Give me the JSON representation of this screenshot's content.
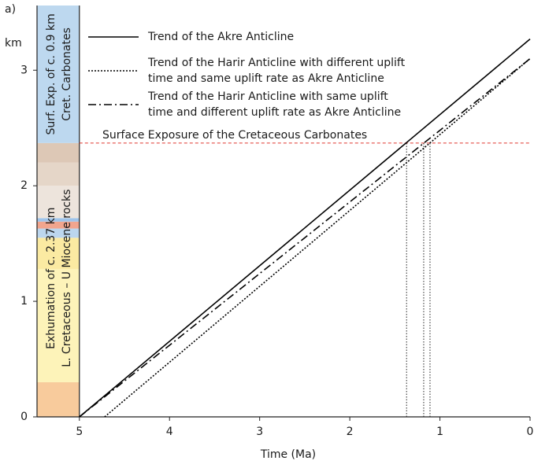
{
  "chart_data": {
    "type": "line",
    "panel_label": "a)",
    "y_label": "km",
    "x_label": "Time (Ma)",
    "xlim": [
      5.47,
      0
    ],
    "xticks": [
      5,
      4,
      3,
      2,
      1,
      0
    ],
    "ylim": [
      0,
      3.56
    ],
    "yticks": [
      0,
      1,
      2,
      3
    ],
    "series": [
      {
        "name": [
          "Trend of the Akre Anticline"
        ],
        "color": "#000000",
        "dash": "solid",
        "x": [
          5,
          0
        ],
        "values": [
          0,
          3.27
        ]
      },
      {
        "name": [
          "Trend of the Harir Anticline with different uplift",
          "time and same uplift rate as Akre Anticline"
        ],
        "color": "#000000",
        "dash": "dotted",
        "x": [
          4.72,
          0
        ],
        "values": [
          0,
          3.1
        ]
      },
      {
        "name": [
          "Trend of the Harir Anticline with same uplift",
          "time and different uplift rate as Akre Anticline"
        ],
        "color": "#000000",
        "dash": "dashdot",
        "x": [
          5,
          0
        ],
        "values": [
          0,
          3.1
        ]
      }
    ],
    "reference_line": {
      "y": 2.37,
      "label": "Surface Exposure of the Cretaceous Carbonates",
      "color": "#e0342c"
    },
    "drop_lines": {
      "x": [
        1.37,
        1.18,
        1.11
      ]
    },
    "column": {
      "x": [
        5.47,
        5
      ],
      "bands": [
        {
          "from": 0,
          "to": 0.3,
          "color": "#f8cb9c"
        },
        {
          "from": 0.3,
          "to": 1.28,
          "color": "#fdf3b9"
        },
        {
          "from": 1.28,
          "to": 1.55,
          "color": "#fbeaa2"
        },
        {
          "from": 1.55,
          "to": 1.63,
          "color": "#bcd6ee"
        },
        {
          "from": 1.63,
          "to": 1.69,
          "color": "#f1a58e"
        },
        {
          "from": 1.69,
          "to": 1.72,
          "color": "#9fc4ea"
        },
        {
          "from": 1.72,
          "to": 2.0,
          "color": "#ede4dc"
        },
        {
          "from": 2.0,
          "to": 2.2,
          "color": "#e5d6c8"
        },
        {
          "from": 2.2,
          "to": 2.37,
          "color": "#ddc8b6"
        },
        {
          "from": 2.37,
          "to": 3.56,
          "color": "#bdd8ef"
        }
      ],
      "upper_text": [
        "Surf. Exp. of c. 0.9 km",
        "Cret. Carbonates"
      ],
      "lower_text": [
        "Exhumation of c. 2.37 km",
        "L. Cretaceous – U Miocene rocks"
      ]
    }
  }
}
